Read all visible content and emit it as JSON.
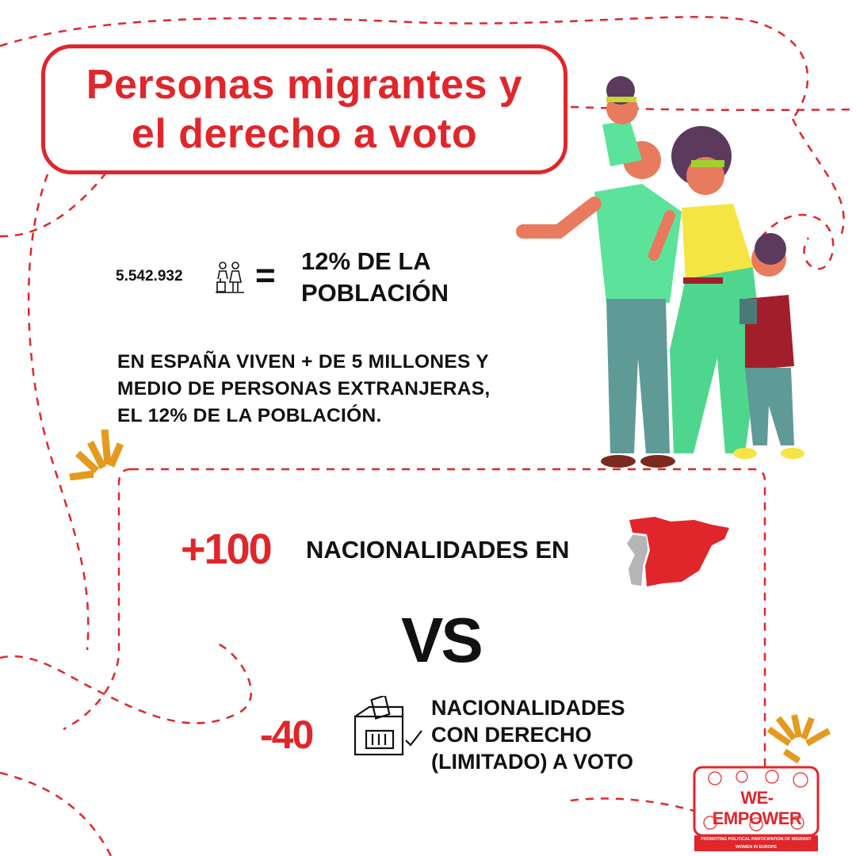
{
  "title": {
    "line1": "Personas migrantes y",
    "line2": "el derecho a voto"
  },
  "population": {
    "count": "5.542.932",
    "equals": "=",
    "percent_line1": "12% DE LA",
    "percent_line2": "POBLACIÓN",
    "icon": "people-family-icon"
  },
  "description": {
    "line1": "EN ESPAÑA VIVEN + DE 5 MILLONES Y",
    "line2": "MEDIO DE PERSONAS EXTRANJERAS,",
    "line3": "EL 12% DE LA POBLACIÓN."
  },
  "comparison": {
    "plus_value": "+100",
    "plus_label": "NACIONALIDADES EN",
    "map_icon": "spain-map-icon",
    "vs": "VS",
    "minus_value": "-40",
    "minus_icon": "ballot-box-icon",
    "minus_line1": "NACIONALIDADES",
    "minus_line2": "CON DERECHO",
    "minus_line3": "(LIMITADO) A VOTO"
  },
  "logo": {
    "name": "WE-EMPOWER",
    "tagline": "PROMOTING POLITICAL PARTICIPATION OF MIGRANT WOMEN IN EUROPE"
  },
  "colors": {
    "accent": "#e0262b",
    "text": "#111111",
    "spark": "#e39a1f"
  }
}
